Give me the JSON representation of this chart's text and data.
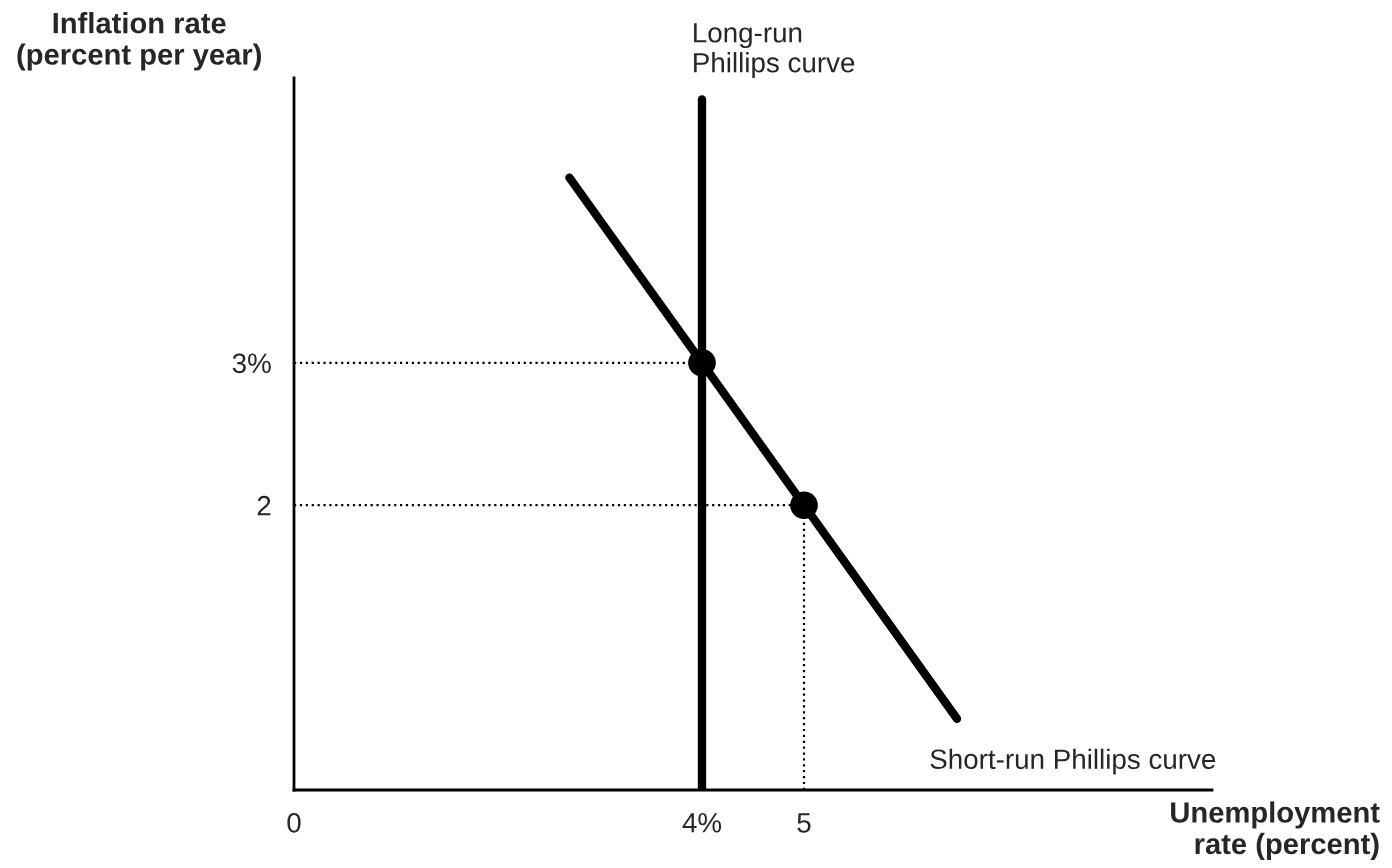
{
  "chart_data": {
    "type": "line",
    "xlabel": "Unemployment\nrate (percent)",
    "ylabel": "Inflation rate\n(percent per year)",
    "xlim": [
      0,
      9
    ],
    "ylim": [
      0,
      5
    ],
    "xticks": [
      0,
      {
        "value": 4,
        "label": "4%"
      },
      5
    ],
    "yticks": [
      2,
      {
        "value": 3,
        "label": "3%"
      }
    ],
    "grid": false,
    "series": [
      {
        "color": "#000000",
        "x": [
          2.7,
          4,
          5,
          6.5
        ],
        "values": [
          4.3,
          3,
          2,
          0.5
        ]
      },
      {
        "type": "scatter",
        "color": "#000000",
        "marker": "circle",
        "x": [
          4,
          5
        ],
        "values": [
          3,
          2
        ]
      },
      {
        "color": "#000000",
        "line_style": "dotted",
        "x": [
          0,
          4
        ],
        "values": [
          3,
          3
        ]
      },
      {
        "color": "#000000",
        "line_style": "dotted",
        "x": [
          0,
          5
        ],
        "values": [
          2,
          2
        ]
      },
      {
        "color": "#000000",
        "line_style": "dotted",
        "x": [
          5,
          5
        ],
        "values": [
          0,
          2
        ]
      }
    ],
    "ref_lines": [
      {
        "axis": "x",
        "value": 4,
        "label": "Long-run\nPhillips curve",
        "color": "#000000"
      }
    ],
    "annotations": [
      {
        "text": "Short-run Phillips curve",
        "x": 6.5,
        "y": 0.5
      }
    ]
  }
}
